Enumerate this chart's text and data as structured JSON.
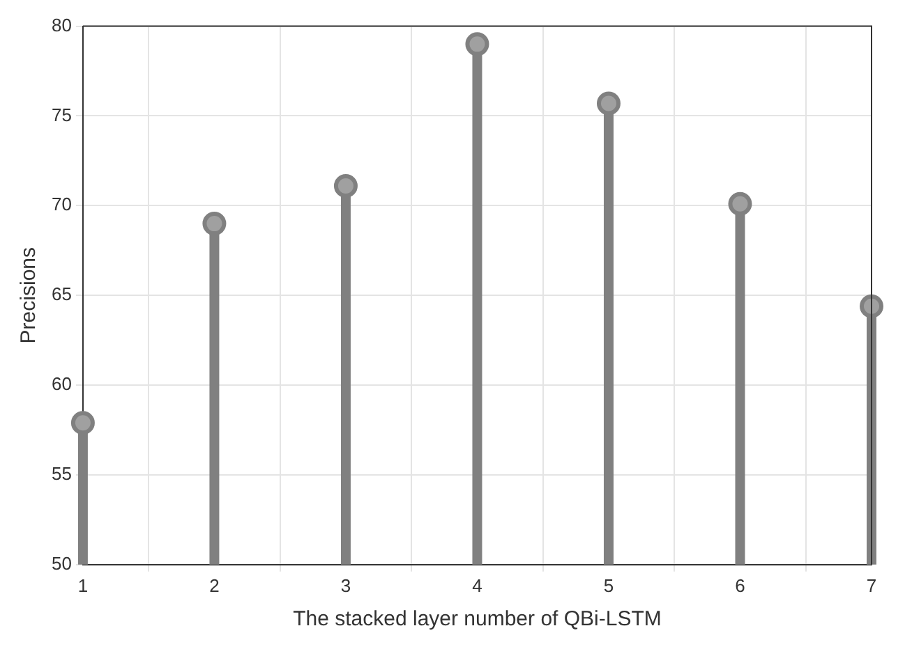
{
  "chart_data": {
    "type": "lollipop",
    "xlabel": "The stacked layer number of QBi-LSTM",
    "ylabel": "Precisions",
    "x": [
      1,
      2,
      3,
      4,
      5,
      6,
      7
    ],
    "values": [
      57.9,
      69.0,
      71.1,
      79.0,
      75.7,
      70.1,
      64.4
    ],
    "color": "#808080",
    "xlim": [
      1,
      7
    ],
    "xticks": [
      1,
      2,
      3,
      4,
      5,
      6,
      7
    ],
    "ylim": [
      50,
      80
    ],
    "yticks": [
      50,
      55,
      60,
      65,
      70,
      75,
      80
    ],
    "grid": true,
    "marker": "circle",
    "legend": false
  }
}
